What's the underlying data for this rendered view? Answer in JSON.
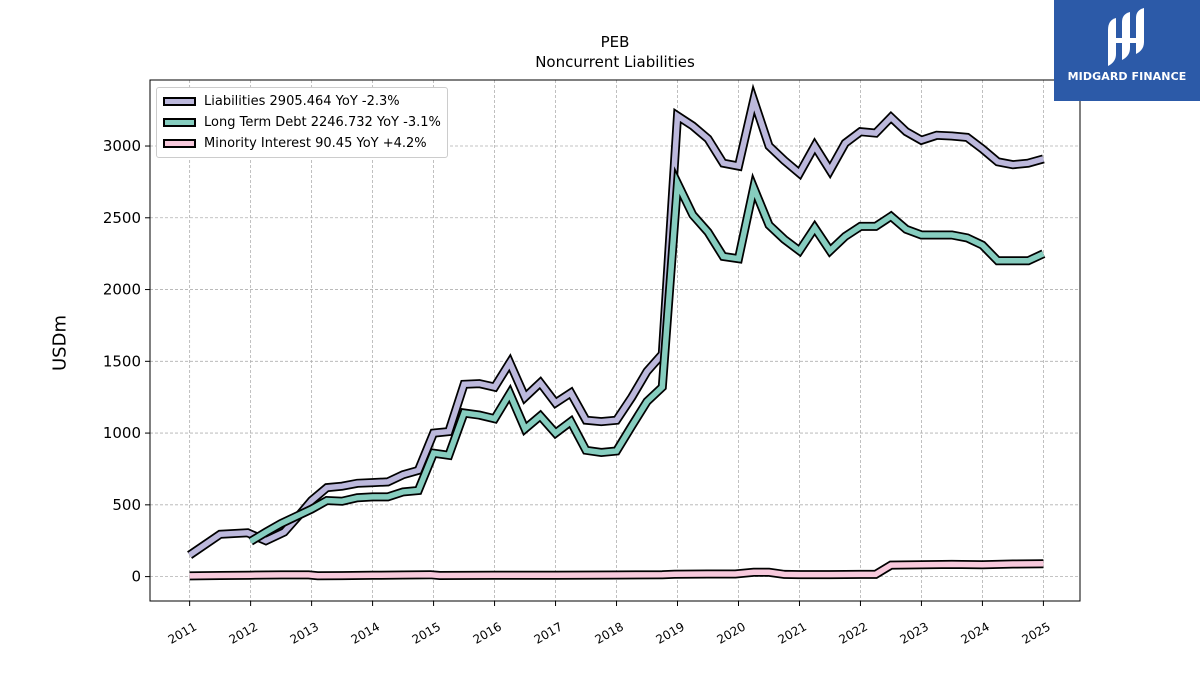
{
  "chart_data": {
    "type": "line",
    "title": "PEB",
    "subtitle": "Noncurrent  Liabilities",
    "ylabel": "USDm",
    "xlabel": "",
    "ylim": [
      -170,
      3460
    ],
    "xlim": [
      2010.35,
      2025.6
    ],
    "yticks": [
      0,
      500,
      1000,
      1500,
      2000,
      2500,
      3000
    ],
    "xticks": [
      "2011",
      "2012",
      "2013",
      "2014",
      "2015",
      "2016",
      "2017",
      "2018",
      "2019",
      "2020",
      "2021",
      "2022",
      "2023",
      "2024",
      "2025"
    ],
    "grid": true,
    "legend_position": "top-left",
    "series": [
      {
        "name": "Liabilities  2905.464 YoY -2.3%",
        "color": "#bcb8dc",
        "x": [
          2011.0,
          2011.5,
          2011.95,
          2012.25,
          2012.55,
          2012.8,
          2013.0,
          2013.25,
          2013.5,
          2013.75,
          2014.0,
          2014.25,
          2014.5,
          2014.75,
          2015.0,
          2015.25,
          2015.5,
          2015.75,
          2016.0,
          2016.25,
          2016.5,
          2016.75,
          2017.0,
          2017.25,
          2017.5,
          2017.75,
          2018.0,
          2018.25,
          2018.5,
          2018.75,
          2019.0,
          2019.25,
          2019.5,
          2019.75,
          2020.0,
          2020.25,
          2020.5,
          2020.75,
          2021.0,
          2021.25,
          2021.5,
          2021.75,
          2022.0,
          2022.25,
          2022.5,
          2022.75,
          2023.0,
          2023.25,
          2023.5,
          2023.75,
          2024.0,
          2024.25,
          2024.5,
          2024.75,
          2025.0
        ],
        "values": [
          150,
          295,
          305,
          250,
          310,
          430,
          530,
          620,
          630,
          650,
          655,
          660,
          710,
          740,
          1000,
          1010,
          1340,
          1345,
          1320,
          1490,
          1250,
          1350,
          1210,
          1280,
          1090,
          1080,
          1090,
          1250,
          1430,
          1550,
          3210,
          3140,
          3050,
          2880,
          2860,
          3320,
          3000,
          2900,
          2810,
          3000,
          2830,
          3020,
          3100,
          3090,
          3200,
          3100,
          3040,
          3075,
          3070,
          3060,
          2980,
          2890,
          2870,
          2880,
          2910
        ]
      },
      {
        "name": "Long Term Debt  2246.732 YoY -3.1%",
        "color": "#86cdbf",
        "x": [
          2012.0,
          2012.25,
          2012.5,
          2012.75,
          2013.0,
          2013.25,
          2013.5,
          2013.75,
          2014.0,
          2014.25,
          2014.5,
          2014.75,
          2015.0,
          2015.25,
          2015.5,
          2015.75,
          2016.0,
          2016.25,
          2016.5,
          2016.75,
          2017.0,
          2017.25,
          2017.5,
          2017.75,
          2018.0,
          2018.25,
          2018.5,
          2018.75,
          2019.0,
          2019.25,
          2019.5,
          2019.75,
          2020.0,
          2020.25,
          2020.5,
          2020.75,
          2021.0,
          2021.25,
          2021.5,
          2021.75,
          2022.0,
          2022.25,
          2022.5,
          2022.75,
          2023.0,
          2023.25,
          2023.5,
          2023.75,
          2024.0,
          2024.25,
          2024.5,
          2024.75,
          2025.0
        ],
        "values": [
          245,
          310,
          370,
          420,
          470,
          530,
          525,
          550,
          555,
          555,
          590,
          600,
          860,
          845,
          1140,
          1125,
          1100,
          1275,
          1030,
          1120,
          1000,
          1080,
          880,
          865,
          875,
          1050,
          1220,
          1320,
          2740,
          2520,
          2400,
          2230,
          2215,
          2710,
          2450,
          2350,
          2270,
          2430,
          2270,
          2370,
          2440,
          2440,
          2510,
          2420,
          2380,
          2380,
          2380,
          2360,
          2310,
          2200,
          2200,
          2200,
          2250
        ]
      },
      {
        "name": "Minority Interest  90.45 YoY +4.2%",
        "color": "#f7c9dc",
        "x": [
          2011.0,
          2011.5,
          2012.0,
          2012.5,
          2012.95,
          2013.1,
          2013.5,
          2014.0,
          2014.5,
          2014.95,
          2015.1,
          2016.0,
          2017.0,
          2018.0,
          2018.75,
          2018.95,
          2019.5,
          2019.95,
          2020.25,
          2020.5,
          2020.75,
          2021.0,
          2021.5,
          2022.0,
          2022.25,
          2022.5,
          2023.0,
          2023.5,
          2024.0,
          2024.5,
          2025.0
        ],
        "values": [
          5,
          8,
          10,
          12,
          12,
          6,
          7,
          9,
          11,
          13,
          8,
          9,
          10,
          11,
          13,
          17,
          18,
          18,
          30,
          30,
          15,
          14,
          14,
          15,
          15,
          80,
          82,
          85,
          83,
          88,
          90
        ]
      }
    ]
  },
  "logo": {
    "text": "MIDGARD FINANCE"
  }
}
